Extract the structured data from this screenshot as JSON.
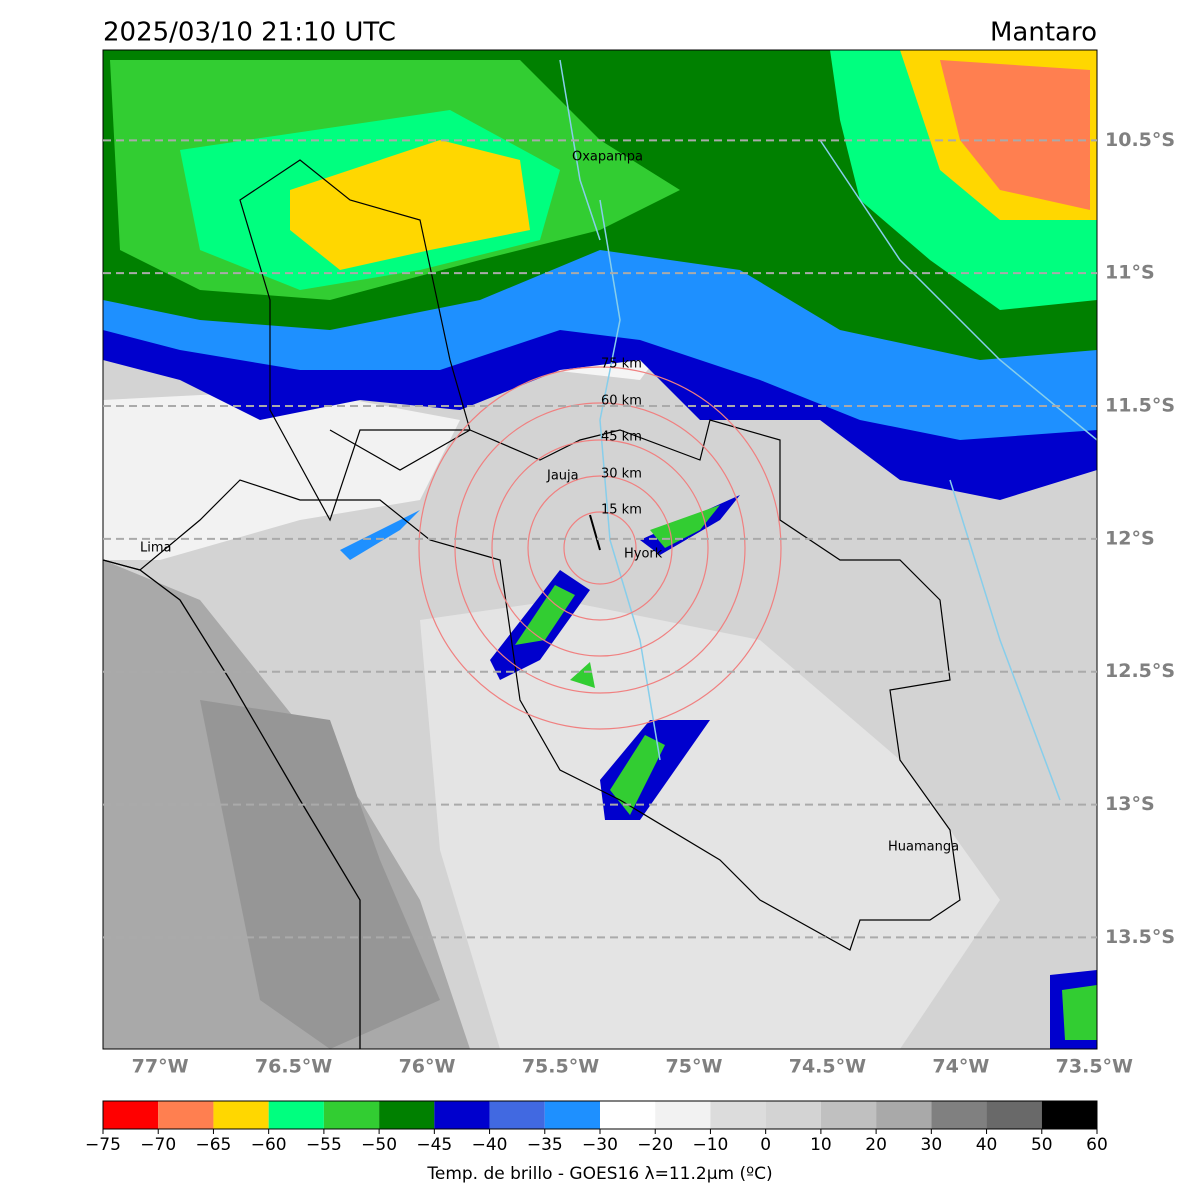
{
  "header": {
    "title": "2025/03/10 21:10 UTC",
    "region": "Mantaro"
  },
  "map": {
    "xlim": [
      -77.214,
      -73.49
    ],
    "ylim": [
      -13.92,
      -10.16
    ],
    "lat_ticks": [
      {
        "value": -10.5,
        "label": "10.5°S"
      },
      {
        "value": -11,
        "label": "11°S"
      },
      {
        "value": -11.5,
        "label": "11.5°S"
      },
      {
        "value": -12,
        "label": "12°S"
      },
      {
        "value": -12.5,
        "label": "12.5°S"
      },
      {
        "value": -13,
        "label": "13°S"
      },
      {
        "value": -13.5,
        "label": "13.5°S"
      }
    ],
    "lon_ticks": [
      {
        "value": -77,
        "label": "77°W"
      },
      {
        "value": -76.5,
        "label": "76.5°W"
      },
      {
        "value": -76,
        "label": "76°W"
      },
      {
        "value": -75.5,
        "label": "75.5°W"
      },
      {
        "value": -75,
        "label": "75°W"
      },
      {
        "value": -74.5,
        "label": "74.5°W"
      },
      {
        "value": -74,
        "label": "74°W"
      },
      {
        "value": -73.5,
        "label": "73.5°W"
      }
    ],
    "grid": true,
    "cities": [
      "Oxapampa",
      "Jauja",
      "Hyork",
      "Lima",
      "Huamanga"
    ],
    "rings": [
      "15 km",
      "30 km",
      "45 km",
      "60 km",
      "75 km"
    ]
  },
  "colorbar": {
    "label": "Temp. de brillo - GOES16 λ=11.2μm (ºC)",
    "ticks": [
      {
        "value": -75,
        "label": "−75"
      },
      {
        "value": -70,
        "label": "−70"
      },
      {
        "value": -65,
        "label": "−65"
      },
      {
        "value": -60,
        "label": "−60"
      },
      {
        "value": -55,
        "label": "−55"
      },
      {
        "value": -50,
        "label": "−50"
      },
      {
        "value": -45,
        "label": "−45"
      },
      {
        "value": -40,
        "label": "−40"
      },
      {
        "value": -35,
        "label": "−35"
      },
      {
        "value": -30,
        "label": "−30"
      },
      {
        "value": -20,
        "label": "−20"
      },
      {
        "value": -10,
        "label": "−10"
      },
      0,
      10,
      20,
      30,
      40,
      50,
      60
    ],
    "colors": [
      "#ff0000",
      "#ff7f50",
      "#ffd700",
      "#00ff7f",
      "#32cd32",
      "#008000",
      "#0000cd",
      "#4169e1",
      "#1e90ff",
      "#ffffff",
      "#f2f2f2",
      "#dcdcdc",
      "#d3d3d3",
      "#c0c0c0",
      "#a9a9a9",
      "#808080",
      "#696969",
      "#000000"
    ]
  }
}
